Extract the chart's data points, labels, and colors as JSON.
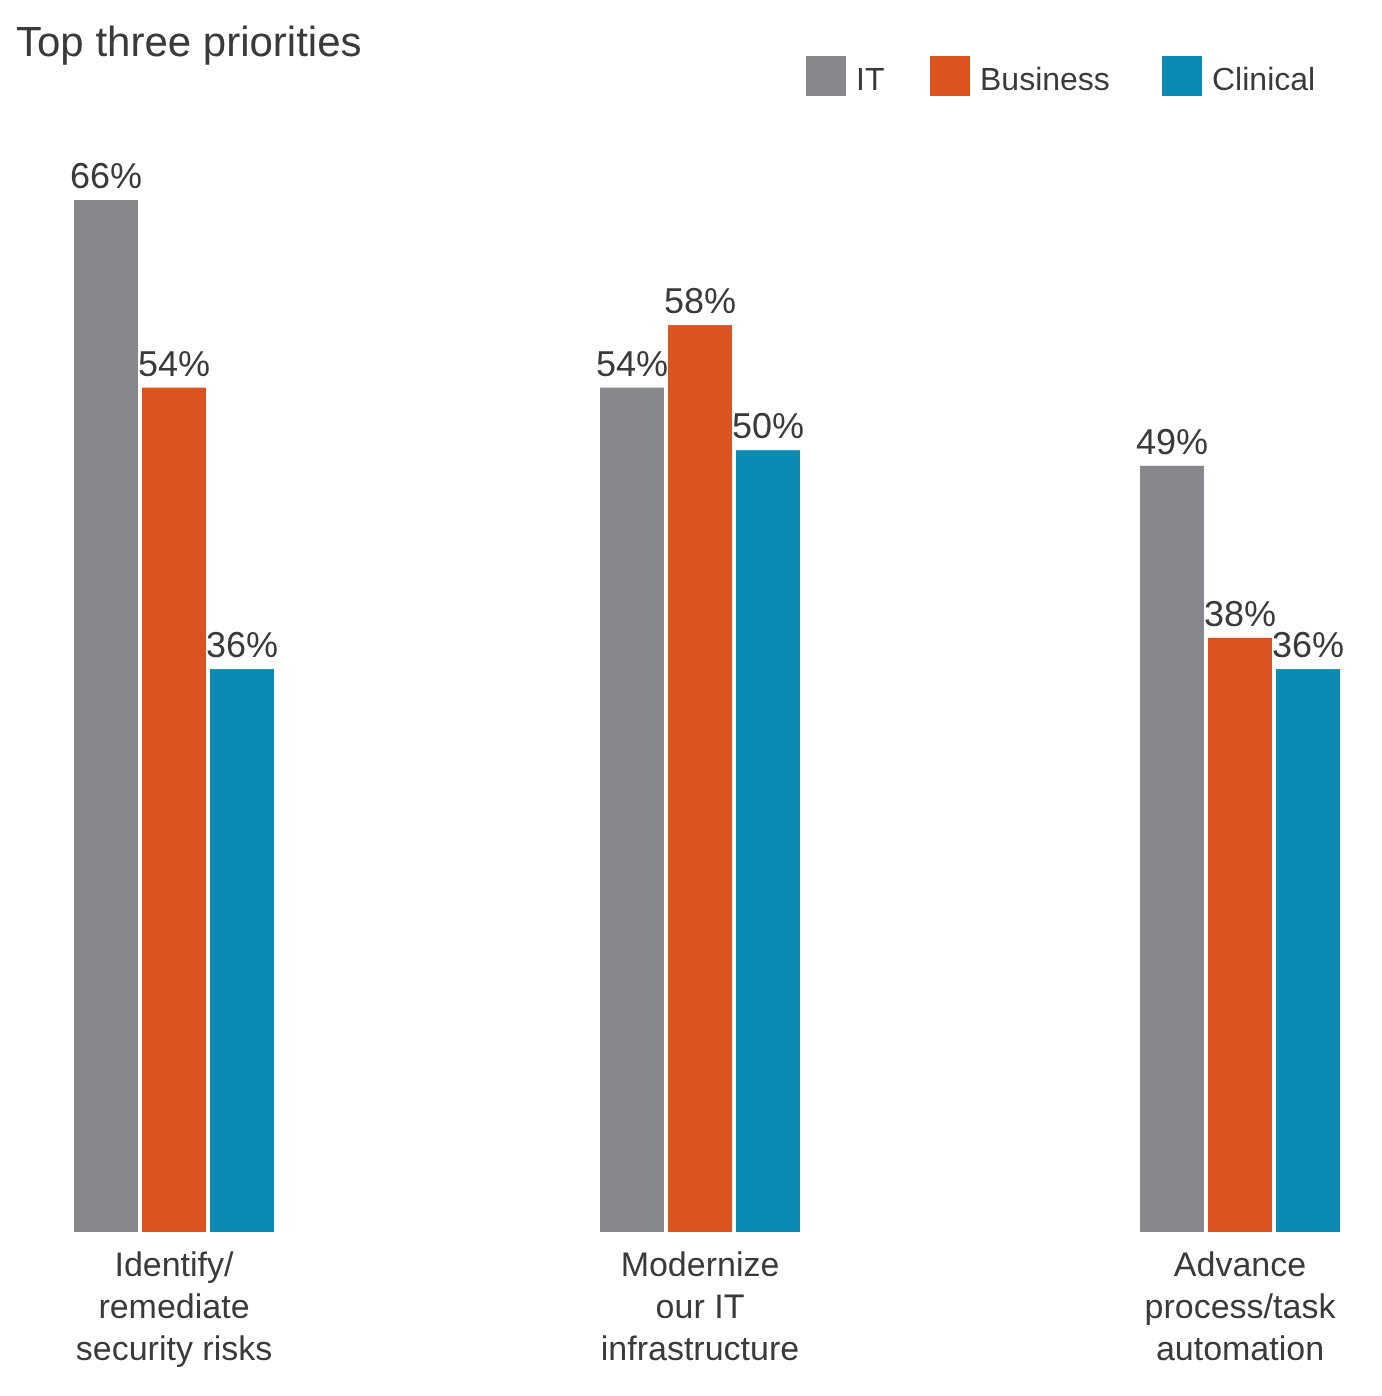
{
  "chart_data": {
    "type": "bar",
    "title": "Top three priorities",
    "categories": [
      "Identify/\nremediate\nsecurity risks",
      "Modernize\nour IT\ninfrastructure",
      "Advance\nprocess/task\nautomation"
    ],
    "series": [
      {
        "name": "IT",
        "color": "#86888c",
        "values": [
          66,
          54,
          49
        ],
        "value_labels": [
          "66%",
          "54%",
          "49%"
        ]
      },
      {
        "name": "Business",
        "color": "#dc5320",
        "values": [
          54,
          58,
          38
        ],
        "value_labels": [
          "54%",
          "58%",
          "38%"
        ]
      },
      {
        "name": "Clinical",
        "color": "#0b8bb3",
        "values": [
          36,
          50,
          36
        ],
        "value_labels": [
          "36%",
          "50%",
          "36%"
        ]
      }
    ],
    "legend": "top right"
  }
}
